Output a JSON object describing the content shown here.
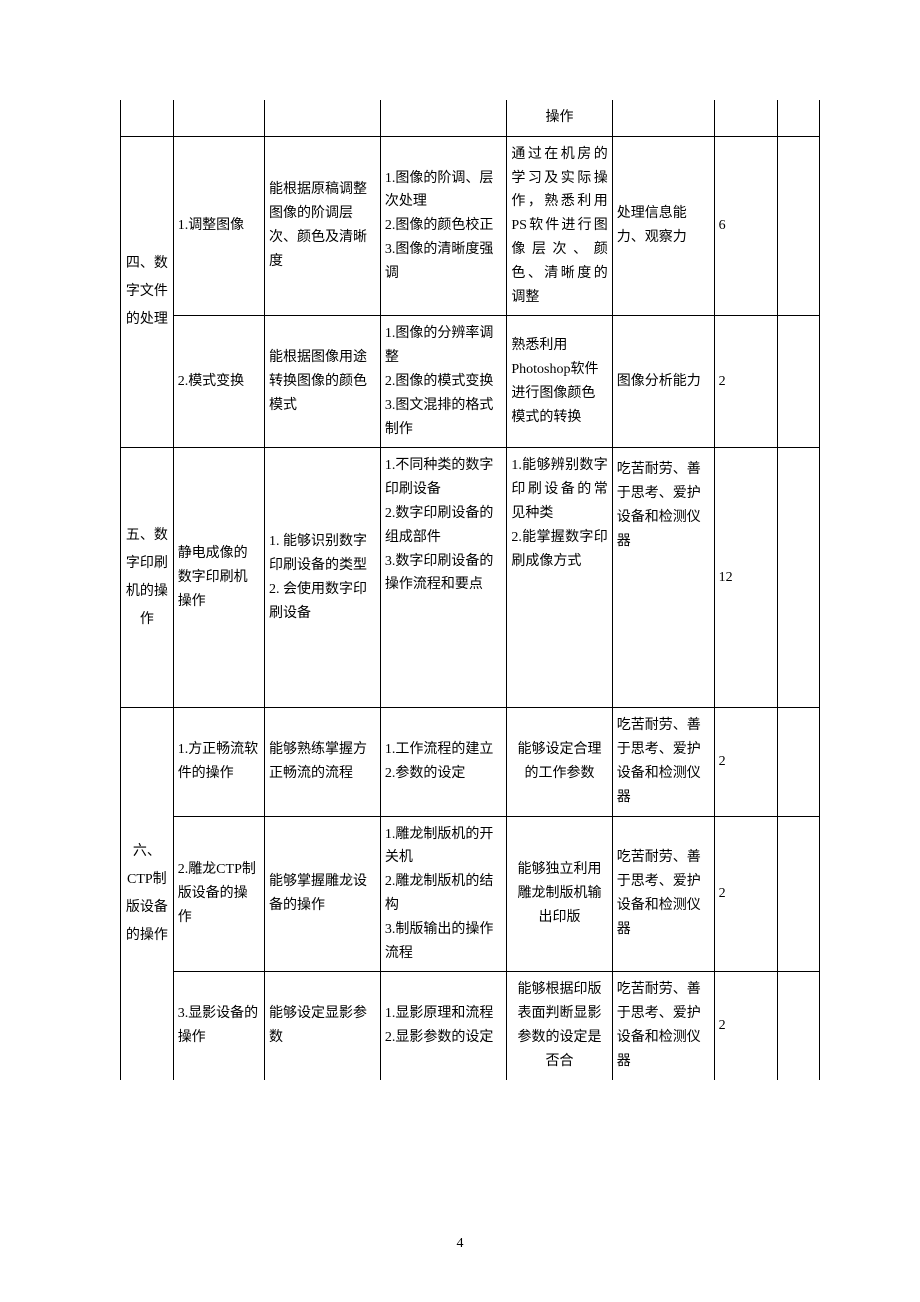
{
  "rows": [
    {
      "col1": "",
      "col2": "",
      "col3": "",
      "col4": "",
      "col5": "操作",
      "col6": "",
      "col7": "",
      "col8": "",
      "topContinue": true
    },
    {
      "col1_rowspan": 2,
      "col1": "四、数字文件的处理",
      "col2": "1.调整图像",
      "col3": "能根据原稿调整图像的阶调层次、颜色及清晰度",
      "col4": "1.图像的阶调、层次处理\n2.图像的颜色校正\n3.图像的清晰度强调",
      "col5": "通过在机房的学习及实际操作，熟悉利用PS软件进行图像层次、颜色、清晰度的调整",
      "col6": "处理信息能力、观察力",
      "col7": "6",
      "col8": ""
    },
    {
      "col2": "2.模式变换",
      "col3": "能根据图像用途转换图像的颜色模式",
      "col4": "1.图像的分辨率调整\n2.图像的模式变换\n3.图文混排的格式制作",
      "col5": "熟悉利用Photoshop软件进行图像颜色模式的转换",
      "col6": "图像分析能力",
      "col7": "2",
      "col8": ""
    },
    {
      "col1": "五、数字印刷机的操作",
      "col2": "静电成像的数字印刷机操作",
      "col3": "1. 能够识别数字印刷设备的类型\n2. 会使用数字印刷设备",
      "col4": "1.不同种类的数字印刷设备\n2.数字印刷设备的组成部件\n3.数字印刷设备的操作流程和要点",
      "col5": "1.能够辨别数字印刷设备的常见种类\n2.能掌握数字印刷成像方式",
      "col6": "吃苦耐劳、善于思考、爱护设备和检测仪器",
      "col7": "12",
      "col8": "",
      "tall": true
    },
    {
      "col1_rowspan": 3,
      "col1": "六、CTP制版设备的操作",
      "col2": "1.方正畅流软件的操作",
      "col3": "能够熟练掌握方正畅流的流程",
      "col4": "1.工作流程的建立\n2.参数的设定",
      "col5": "能够设定合理的工作参数",
      "col6": "吃苦耐劳、善于思考、爱护设备和检测仪器",
      "col7": "2",
      "col8": ""
    },
    {
      "col2": "2.雕龙CTP制版设备的操作",
      "col3": "能够掌握雕龙设备的操作",
      "col4": "1.雕龙制版机的开关机\n2.雕龙制版机的结构\n3.制版输出的操作流程",
      "col5": "能够独立利用雕龙制版机输出印版",
      "col6": "吃苦耐劳、善于思考、爱护设备和检测仪器",
      "col7": "2",
      "col8": ""
    },
    {
      "col2": "3.显影设备的操作",
      "col3": "能够设定显影参数",
      "col4": "1.显影原理和流程\n2.显影参数的设定",
      "col5": "能够根据印版表面判断显影参数的设定是否合",
      "col6": "吃苦耐劳、善于思考、爱护设备和检测仪器",
      "col7": "2",
      "col8": "",
      "bottomContinue": true
    }
  ],
  "pageNumber": "4"
}
